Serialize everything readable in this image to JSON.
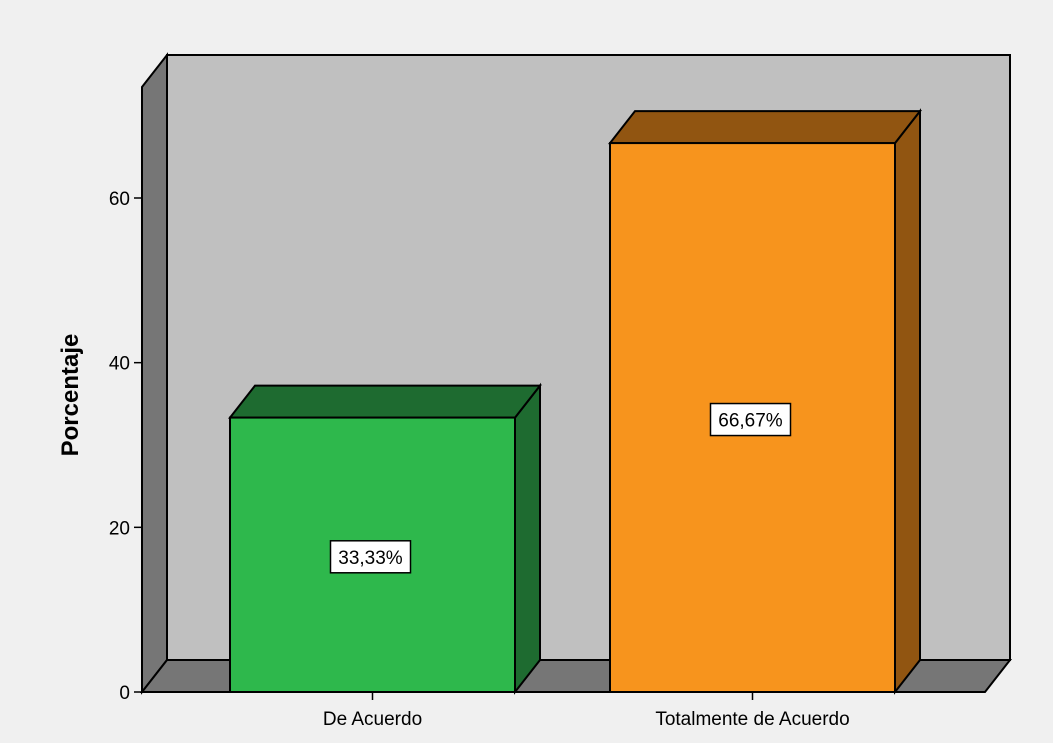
{
  "chart_data": {
    "type": "bar",
    "categories": [
      "De Acuerdo",
      "Totalmente de Acuerdo"
    ],
    "values": [
      33.33,
      66.67
    ],
    "value_labels": [
      "33,33%",
      "66,67%"
    ],
    "title": "",
    "xlabel": "",
    "ylabel": "Porcentaje",
    "ylim": [
      0,
      70
    ],
    "yticks": [
      0,
      20,
      40,
      60
    ],
    "grid": false,
    "style": "3d",
    "colors": {
      "bar_fronts": [
        "#2eb84c",
        "#f7941d"
      ],
      "bar_tops": [
        "#1e6b30",
        "#915511"
      ],
      "bar_sides": [
        "#1e6b30",
        "#915511"
      ],
      "back_wall": "#c0c0c0",
      "side_wall": "#767676",
      "floor": "#767676",
      "background": "#f0f0f0"
    }
  }
}
